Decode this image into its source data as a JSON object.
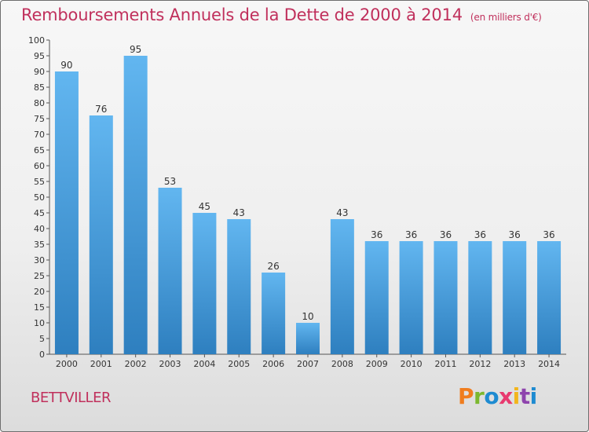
{
  "header": {
    "title": "Remboursements Annuels de la Dette de 2000 à 2014",
    "unit": "(en milliers d'€)"
  },
  "footer": {
    "commune": "BETTVILLER",
    "logo_text": "Proxiti"
  },
  "colors": {
    "title": "#c0305c",
    "bar_top": "#62b6f0",
    "bar_bottom": "#2e7fbf",
    "logo_letters": [
      "#f07d1e",
      "#7cb82f",
      "#1e8bd1",
      "#e83a6f",
      "#f2b51c",
      "#8e44ad",
      "#1e8bd1"
    ]
  },
  "chart_data": {
    "type": "bar",
    "categories": [
      "2000",
      "2001",
      "2002",
      "2003",
      "2004",
      "2005",
      "2006",
      "2007",
      "2008",
      "2009",
      "2010",
      "2011",
      "2012",
      "2013",
      "2014"
    ],
    "values": [
      90,
      76,
      95,
      53,
      45,
      43,
      26,
      10,
      43,
      36,
      36,
      36,
      36,
      36,
      36
    ],
    "title": "Remboursements Annuels de la Dette de 2000 à 2014",
    "xlabel": "",
    "ylabel": "",
    "ylim": [
      0,
      100
    ],
    "yticks": [
      0,
      5,
      10,
      15,
      20,
      25,
      30,
      35,
      40,
      45,
      50,
      55,
      60,
      65,
      70,
      75,
      80,
      85,
      90,
      95,
      100
    ],
    "grid": false,
    "legend": "none"
  }
}
